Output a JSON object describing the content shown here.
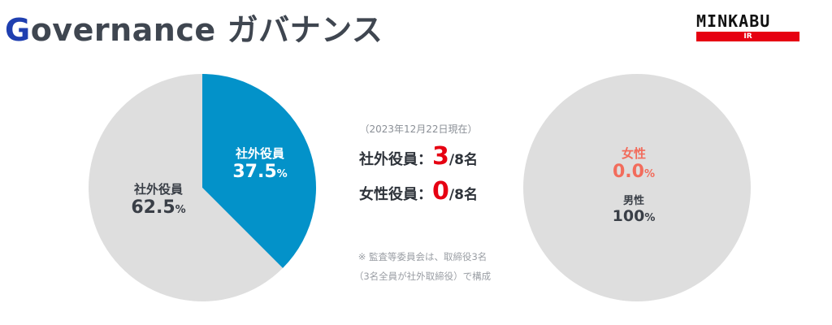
{
  "header": {
    "title_first_letter": "G",
    "title_rest": "overnance",
    "title_ja": "ガバナンス"
  },
  "logo": {
    "name": "MINKABU",
    "sub": "IR"
  },
  "center": {
    "date": "（2023年12月22日現在）",
    "outside_label": "社外役員：",
    "outside_value": "3",
    "outside_suffix": "/8名",
    "female_label": "女性役員：",
    "female_value": "0",
    "female_suffix": "/8名",
    "note_line1": "※ 監査等委員会は、取締役3名",
    "note_line2": "（3名全員が社外取締役）で構成"
  },
  "colors": {
    "accent_blue": "#0392c9",
    "gray": "#dedede",
    "red": "#e60012",
    "salmon": "#f26c5c"
  },
  "chart_data": [
    {
      "type": "pie",
      "slices": [
        {
          "label": "社外役員",
          "value": 37.5,
          "display": "37.5",
          "unit": "%",
          "color": "#0392c9",
          "label_color": "#ffffff"
        },
        {
          "label": "社外役員",
          "value": 62.5,
          "display": "62.5",
          "unit": "%",
          "color": "#dedede",
          "label_color": "#3a3f47"
        }
      ]
    },
    {
      "type": "pie",
      "slices": [
        {
          "label": "女性",
          "value": 0.0,
          "display": "0.0",
          "unit": "%",
          "color": "#f26c5c",
          "label_color": "#f26c5c"
        },
        {
          "label": "男性",
          "value": 100,
          "display": "100",
          "unit": "%",
          "color": "#dedede",
          "label_color": "#3a3f47"
        }
      ]
    }
  ]
}
